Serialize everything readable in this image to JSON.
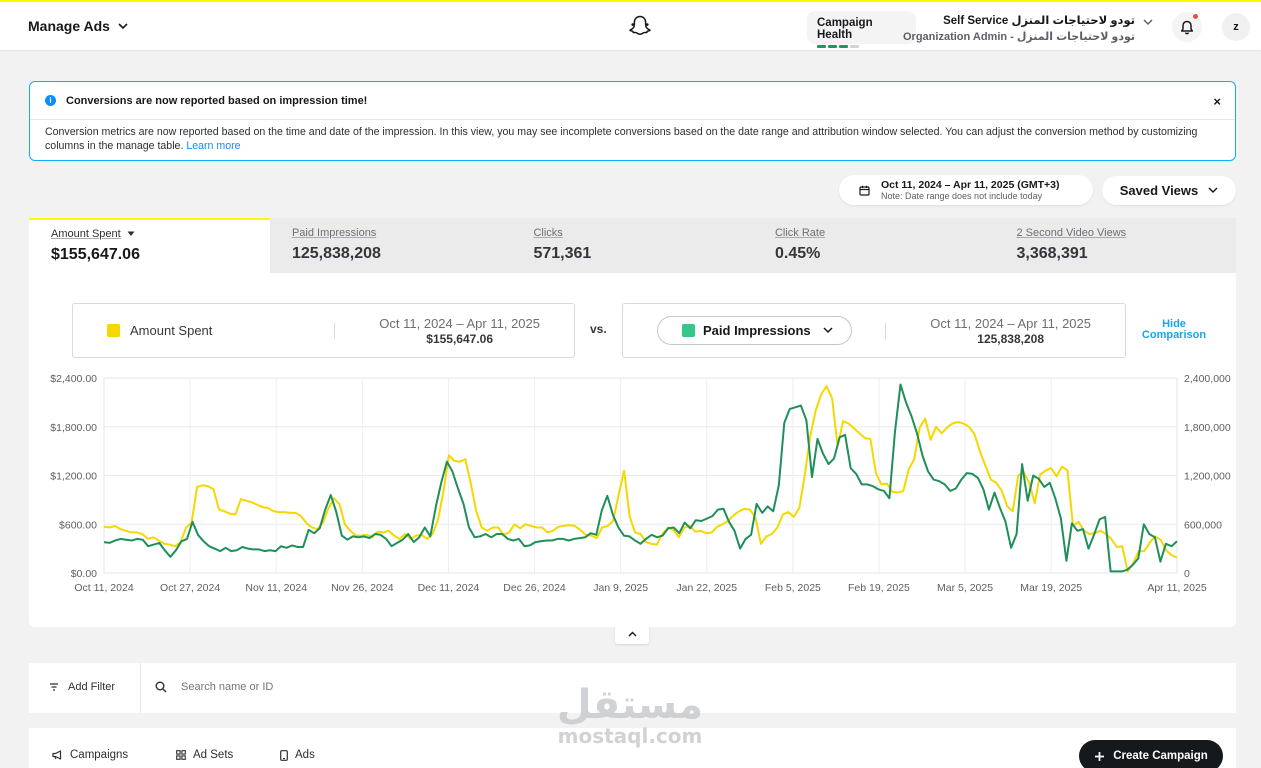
{
  "header": {
    "manage_ads": "Manage Ads",
    "campaign_health": "Campaign Health",
    "account_name": "Self Service تودو لاحتياجات المنزل",
    "account_sub": "Organization Admin - تودو لاحتياجات المنزل",
    "avatar_initial": "z"
  },
  "notice": {
    "title": "Conversions are now reported based on impression time!",
    "body": "Conversion metrics are now reported based on the time and date of the impression. In this view, you may see incomplete conversions based on the date range and attribution window selected. You can adjust the conversion method by customizing columns in the manage table.",
    "link": "Learn more",
    "close": "×",
    "info_glyph": "i"
  },
  "date_range": {
    "label": "Oct 11, 2024 – Apr 11, 2025 (GMT+3)",
    "note": "Note: Date range does not include today"
  },
  "saved_views": "Saved Views",
  "metrics": [
    {
      "label": "Amount Spent",
      "value": "$155,647.06"
    },
    {
      "label": "Paid Impressions",
      "value": "125,838,208"
    },
    {
      "label": "Clicks",
      "value": "571,361"
    },
    {
      "label": "Click Rate",
      "value": "0.45%"
    },
    {
      "label": "2 Second Video Views",
      "value": "3,368,391"
    }
  ],
  "comparison": {
    "left_metric": "Amount Spent",
    "left_range": "Oct 11, 2024 – Apr 11, 2025",
    "left_total": "$155,647.06",
    "vs": "vs.",
    "right_metric": "Paid Impressions",
    "right_range": "Oct 11, 2024 – Apr 11, 2025",
    "right_total": "125,838,208",
    "hide": "Hide Comparison"
  },
  "colors": {
    "amount_spent": "#f5d800",
    "paid_impressions": "#1f8f5a",
    "accent_link": "#0f8cff"
  },
  "chart_data": {
    "type": "line",
    "x_tick_labels": [
      "Oct 11, 2024",
      "Oct 27, 2024",
      "Nov 11, 2024",
      "Nov 26, 2024",
      "Dec 11, 2024",
      "Dec 26, 2024",
      "Jan 9, 2025",
      "Jan 22, 2025",
      "Feb 5, 2025",
      "Feb 19, 2025",
      "Mar 5, 2025",
      "Mar 19, 2025",
      "Apr 11, 2025"
    ],
    "y_left_ticks": [
      "$2,400.00",
      "$1,800.00",
      "$1,200.00",
      "$600.00",
      "$0.00"
    ],
    "y_right_ticks": [
      "2,400,000",
      "1,800,000",
      "1,200,000",
      "600,000",
      "0"
    ],
    "y_left_range": [
      0,
      2400
    ],
    "y_right_range": [
      0,
      2400000
    ],
    "grid": true,
    "series": [
      {
        "name": "Amount Spent",
        "axis": "left",
        "values": [
          570,
          560,
          580,
          540,
          520,
          500,
          500,
          480,
          420,
          440,
          400,
          360,
          350,
          330,
          380,
          560,
          620,
          1060,
          1080,
          1070,
          1030,
          780,
          760,
          730,
          720,
          910,
          890,
          870,
          840,
          810,
          800,
          760,
          750,
          750,
          740,
          740,
          700,
          610,
          560,
          540,
          620,
          800,
          920,
          850,
          600,
          520,
          460,
          460,
          470,
          440,
          510,
          500,
          520,
          460,
          420,
          480,
          420,
          460,
          470,
          420,
          480,
          650,
          1000,
          1450,
          1380,
          1370,
          1400,
          1100,
          760,
          560,
          520,
          560,
          560,
          470,
          500,
          600,
          550,
          600,
          580,
          560,
          560,
          500,
          520,
          570,
          580,
          590,
          580,
          530,
          470,
          460,
          430,
          560,
          580,
          640,
          960,
          1260,
          700,
          500,
          480,
          380,
          360,
          350,
          480,
          560,
          530,
          440,
          560,
          580,
          510,
          520,
          490,
          500,
          570,
          600,
          640,
          710,
          760,
          790,
          780,
          680,
          360,
          450,
          480,
          560,
          720,
          750,
          690,
          800,
          1200,
          1680,
          2000,
          2200,
          2300,
          2150,
          1560,
          1870,
          1840,
          1780,
          1720,
          1660,
          1650,
          1230,
          1090,
          1100,
          1000,
          990,
          1010,
          1280,
          1400,
          1790,
          1900,
          1640,
          1800,
          1720,
          1790,
          1840,
          1860,
          1840,
          1800,
          1710,
          1500,
          1320,
          1150,
          1110,
          1010,
          820,
          760,
          1200,
          1240,
          1110,
          860,
          1210,
          1260,
          1290,
          1190,
          1310,
          1260,
          580,
          630,
          520,
          480,
          490,
          520,
          480,
          420,
          320,
          330,
          20,
          120,
          270,
          270,
          370,
          450,
          410,
          280,
          220,
          190
        ],
        "color": "#f5d800"
      },
      {
        "name": "Paid Impressions",
        "axis": "right",
        "values": [
          380000,
          370000,
          400000,
          420000,
          410000,
          400000,
          420000,
          410000,
          330000,
          350000,
          370000,
          280000,
          200000,
          280000,
          390000,
          420000,
          630000,
          470000,
          390000,
          330000,
          300000,
          270000,
          310000,
          270000,
          280000,
          320000,
          300000,
          290000,
          290000,
          270000,
          280000,
          270000,
          330000,
          310000,
          340000,
          320000,
          320000,
          530000,
          490000,
          550000,
          780000,
          960000,
          750000,
          460000,
          410000,
          450000,
          440000,
          450000,
          430000,
          480000,
          470000,
          420000,
          330000,
          370000,
          410000,
          480000,
          380000,
          440000,
          560000,
          450000,
          820000,
          1120000,
          1370000,
          1250000,
          1040000,
          850000,
          560000,
          440000,
          450000,
          480000,
          440000,
          480000,
          480000,
          420000,
          400000,
          420000,
          330000,
          340000,
          380000,
          390000,
          400000,
          400000,
          420000,
          420000,
          400000,
          420000,
          430000,
          440000,
          490000,
          470000,
          770000,
          950000,
          720000,
          560000,
          460000,
          450000,
          400000,
          360000,
          420000,
          470000,
          440000,
          460000,
          550000,
          560000,
          490000,
          620000,
          550000,
          650000,
          640000,
          670000,
          700000,
          780000,
          790000,
          630000,
          520000,
          300000,
          420000,
          470000,
          850000,
          740000,
          820000,
          760000,
          1080000,
          1850000,
          2020000,
          2040000,
          2060000,
          1880000,
          1180000,
          1650000,
          1470000,
          1340000,
          1410000,
          1670000,
          1700000,
          1290000,
          1220000,
          1090000,
          1090000,
          1070000,
          1030000,
          1010000,
          920000,
          1730000,
          2320000,
          2100000,
          1930000,
          1720000,
          1440000,
          1250000,
          1150000,
          1130000,
          1090000,
          1010000,
          1040000,
          1150000,
          1230000,
          1220000,
          1170000,
          1030000,
          780000,
          990000,
          800000,
          630000,
          310000,
          480000,
          1340000,
          890000,
          1200000,
          1160000,
          1060000,
          1110000,
          920000,
          670000,
          150000,
          610000,
          520000,
          540000,
          300000,
          470000,
          660000,
          690000,
          20000,
          20000,
          20000,
          40000,
          100000,
          180000,
          600000,
          480000,
          440000,
          140000,
          360000,
          330000,
          390000
        ],
        "color": "#1f8f5a"
      }
    ]
  },
  "filter": {
    "add_filter": "Add Filter",
    "search_placeholder": "Search name or ID"
  },
  "tabs": [
    {
      "label": "Campaigns"
    },
    {
      "label": "Ad Sets"
    },
    {
      "label": "Ads"
    }
  ],
  "create_campaign": "Create Campaign",
  "watermark": {
    "arabic": "مستقل",
    "latin": "mostaql.com"
  }
}
